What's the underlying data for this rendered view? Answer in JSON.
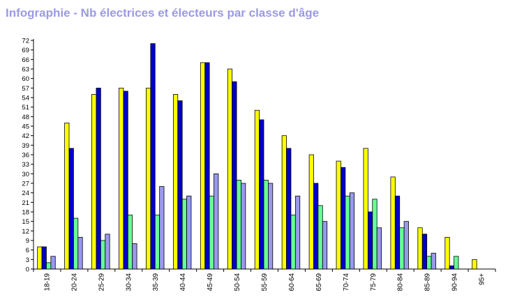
{
  "chart_data": {
    "type": "bar",
    "title": "Infographie - Nb électrices et électeurs par classe d'âge",
    "xlabel": "",
    "ylabel": "",
    "ylim": [
      0,
      72
    ],
    "yticks": [
      0,
      3,
      6,
      9,
      12,
      15,
      18,
      21,
      24,
      27,
      30,
      33,
      36,
      39,
      42,
      45,
      48,
      51,
      54,
      57,
      60,
      63,
      66,
      69,
      72
    ],
    "grid": false,
    "legend": "none",
    "categories": [
      "18-19",
      "20-24",
      "25-29",
      "30-34",
      "35-39",
      "40-44",
      "45-49",
      "50-54",
      "55-59",
      "60-64",
      "65-69",
      "70-74",
      "75-79",
      "80-84",
      "85-89",
      "90-94",
      "95+"
    ],
    "series": [
      {
        "color": "#ffff00",
        "values": [
          7,
          46,
          55,
          57,
          57,
          55,
          65,
          63,
          50,
          42,
          36,
          34,
          38,
          29,
          13,
          10,
          3
        ]
      },
      {
        "color": "#0000cc",
        "values": [
          7,
          38,
          57,
          56,
          71,
          53,
          65,
          59,
          47,
          38,
          27,
          32,
          18,
          23,
          11,
          1,
          0
        ]
      },
      {
        "color": "#66ff99",
        "values": [
          2,
          16,
          9,
          17,
          17,
          22,
          23,
          28,
          28,
          17,
          20,
          23,
          22,
          13,
          4,
          4,
          0
        ]
      },
      {
        "color": "#9999ee",
        "values": [
          4,
          10,
          11,
          8,
          26,
          23,
          30,
          27,
          27,
          23,
          15,
          24,
          13,
          15,
          5,
          0,
          0
        ]
      }
    ]
  }
}
